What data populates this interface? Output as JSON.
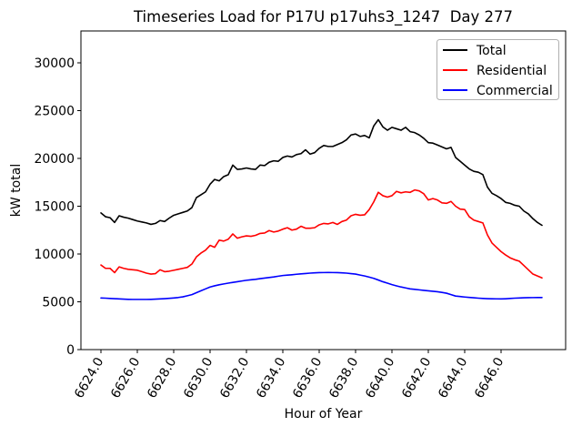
{
  "figure": {
    "title": "Timeseries Load for P17U p17uhs3_1247  Day 277",
    "background_color": "#ffffff"
  },
  "chart_data": {
    "type": "line",
    "title": "Timeseries Load for P17U p17uhs3_1247  Day 277",
    "xlabel": "Hour of Year",
    "ylabel": "kW total",
    "grid": false,
    "legend_position": "upper right",
    "xlim": [
      6622.9,
      6649.55
    ],
    "ylim": [
      0,
      33333
    ],
    "xticks": [
      6624,
      6626,
      6628,
      6630,
      6632,
      6634,
      6636,
      6638,
      6640,
      6642,
      6644,
      6646
    ],
    "xtick_labels": [
      "6624.0",
      "6626.0",
      "6628.0",
      "6630.0",
      "6632.0",
      "6634.0",
      "6636.0",
      "6638.0",
      "6640.0",
      "6642.0",
      "6644.0",
      "6646.0"
    ],
    "xtick_rotation_deg": 60,
    "yticks": [
      0,
      5000,
      10000,
      15000,
      20000,
      25000,
      30000
    ],
    "ytick_labels": [
      "0",
      "5000",
      "10000",
      "15000",
      "20000",
      "25000",
      "30000"
    ],
    "x_start": 6624.0,
    "x_step": 0.25,
    "n_points": 98,
    "series": [
      {
        "name": "Total",
        "color": "#000000",
        "values": [
          14300,
          13900,
          13800,
          13300,
          14000,
          13850,
          13750,
          13600,
          13450,
          13350,
          13250,
          13100,
          13200,
          13500,
          13400,
          13750,
          14050,
          14200,
          14350,
          14500,
          14850,
          15900,
          16200,
          16500,
          17300,
          17800,
          17650,
          18100,
          18300,
          19300,
          18850,
          18900,
          19000,
          18900,
          18850,
          19300,
          19250,
          19600,
          19750,
          19700,
          20100,
          20250,
          20150,
          20400,
          20500,
          20900,
          20450,
          20600,
          21050,
          21350,
          21250,
          21250,
          21450,
          21650,
          21950,
          22450,
          22550,
          22300,
          22400,
          22150,
          23400,
          24050,
          23300,
          22950,
          23250,
          23100,
          22950,
          23250,
          22800,
          22700,
          22450,
          22100,
          21650,
          21600,
          21400,
          21200,
          21000,
          21150,
          20100,
          19700,
          19300,
          18900,
          18650,
          18550,
          18300,
          17000,
          16350,
          16100,
          15800,
          15400,
          15300,
          15100,
          15000,
          14500,
          14200,
          13700,
          13300,
          13000
        ]
      },
      {
        "name": "Residential",
        "color": "#ff0000",
        "values": [
          8850,
          8500,
          8500,
          8050,
          8650,
          8500,
          8400,
          8350,
          8300,
          8150,
          8000,
          7900,
          7950,
          8350,
          8150,
          8200,
          8300,
          8400,
          8500,
          8600,
          8950,
          9700,
          10100,
          10400,
          10900,
          10700,
          11450,
          11350,
          11550,
          12100,
          11650,
          11800,
          11900,
          11850,
          11950,
          12150,
          12200,
          12450,
          12300,
          12400,
          12600,
          12750,
          12500,
          12600,
          12900,
          12700,
          12700,
          12750,
          13050,
          13200,
          13150,
          13300,
          13100,
          13400,
          13550,
          14000,
          14150,
          14050,
          14100,
          14650,
          15450,
          16450,
          16100,
          15950,
          16100,
          16550,
          16400,
          16500,
          16450,
          16700,
          16600,
          16300,
          15650,
          15800,
          15650,
          15350,
          15300,
          15500,
          15000,
          14700,
          14650,
          13900,
          13550,
          13400,
          13250,
          12000,
          11150,
          10700,
          10250,
          9900,
          9600,
          9400,
          9250,
          8800,
          8350,
          7900,
          7700,
          7500
        ]
      },
      {
        "name": "Commercial",
        "color": "#0000ff",
        "values": [
          5400,
          5380,
          5350,
          5330,
          5300,
          5280,
          5260,
          5250,
          5250,
          5250,
          5250,
          5260,
          5280,
          5300,
          5330,
          5360,
          5400,
          5450,
          5520,
          5630,
          5750,
          5950,
          6150,
          6350,
          6550,
          6670,
          6780,
          6870,
          6950,
          7030,
          7100,
          7180,
          7250,
          7300,
          7350,
          7420,
          7480,
          7540,
          7600,
          7680,
          7750,
          7790,
          7830,
          7880,
          7920,
          7960,
          8000,
          8030,
          8050,
          8060,
          8070,
          8060,
          8050,
          8030,
          8000,
          7950,
          7900,
          7800,
          7700,
          7580,
          7450,
          7280,
          7100,
          6950,
          6800,
          6670,
          6550,
          6450,
          6350,
          6300,
          6250,
          6200,
          6150,
          6100,
          6050,
          5980,
          5900,
          5750,
          5600,
          5550,
          5500,
          5460,
          5420,
          5380,
          5350,
          5330,
          5320,
          5310,
          5300,
          5320,
          5350,
          5380,
          5400,
          5420,
          5430,
          5440,
          5450,
          5450
        ]
      }
    ]
  },
  "legend": {
    "entries": [
      {
        "label": "Total",
        "color": "#000000"
      },
      {
        "label": "Residential",
        "color": "#ff0000"
      },
      {
        "label": "Commercial",
        "color": "#0000ff"
      }
    ]
  }
}
